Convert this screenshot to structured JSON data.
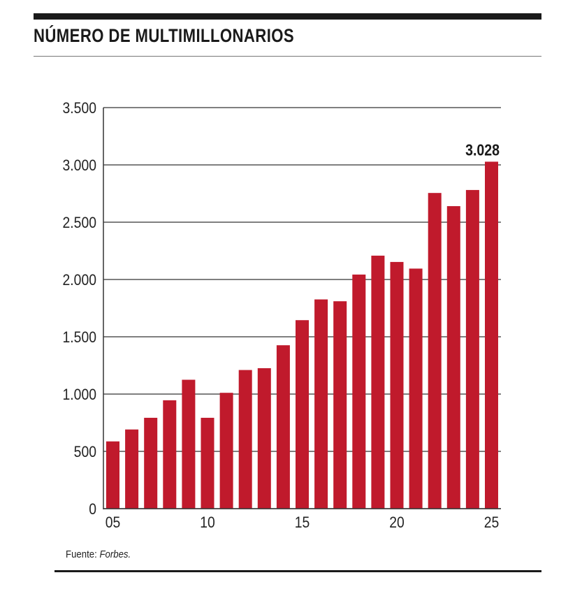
{
  "header": {
    "title": "NÚMERO DE MULTIMILLONARIOS"
  },
  "footer": {
    "source_label": "Fuente:",
    "source_name": "Forbes."
  },
  "chart_data": {
    "type": "bar",
    "title": "NÚMERO DE MULTIMILLONARIOS",
    "xlabel": "",
    "ylabel": "",
    "categories": [
      "2005",
      "2006",
      "2007",
      "2008",
      "2009",
      "2010",
      "2011",
      "2012",
      "2013",
      "2014",
      "2015",
      "2016",
      "2017",
      "2018",
      "2019",
      "2020",
      "2021",
      "2022",
      "2023",
      "2024",
      "2025"
    ],
    "x_tick_labels": [
      {
        "index": 0,
        "label": "05"
      },
      {
        "index": 5,
        "label": "10"
      },
      {
        "index": 10,
        "label": "15"
      },
      {
        "index": 15,
        "label": "20"
      },
      {
        "index": 20,
        "label": "25"
      }
    ],
    "values": [
      587,
      691,
      793,
      946,
      1125,
      793,
      1011,
      1210,
      1226,
      1426,
      1645,
      1826,
      1810,
      2043,
      2208,
      2153,
      2095,
      2755,
      2640,
      2781,
      3028
    ],
    "y_ticks": [
      0,
      500,
      1000,
      1500,
      2000,
      2500,
      3000,
      3500
    ],
    "y_tick_labels": [
      "0",
      "500",
      "1.000",
      "1.500",
      "2.000",
      "2.500",
      "3.000",
      "3.500"
    ],
    "ylim": [
      0,
      3500
    ],
    "grid": true,
    "bar_color": "#c01a2c",
    "annotations": [
      {
        "index": 20,
        "label": "3.028"
      }
    ]
  }
}
